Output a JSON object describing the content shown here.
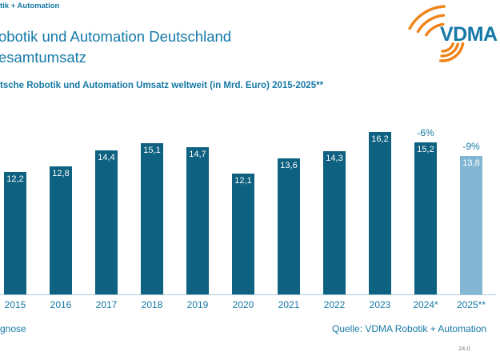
{
  "slide": {
    "brand_fragment": "tik + Automation",
    "title_lines": [
      "obotik und Automation Deutschland",
      "esamtumsatz"
    ],
    "subtitle": "tsche Robotik und Automation Umsatz weltweit (in Mrd. Euro) 2015-2025**",
    "logo_text": "VDMA",
    "footnote_fragment": "gnose",
    "source": "Quelle: VDMA Robotik + Automation",
    "date_fragment": "24.0"
  },
  "colors": {
    "teal_text": "#1679A5",
    "bar": "#0E6180",
    "bar_forecast": "#82B6D2",
    "bar_label": "#FFFFFF",
    "axis_line": "#A6CADD",
    "logo_orange": "#EF8318",
    "logo_blue": "#1579A8",
    "date_gray": "#7A7A7A"
  },
  "chart_data": {
    "type": "bar",
    "title_fragment": "tsche Robotik und Automation Umsatz weltweit (in Mrd. Euro) 2015-2025**",
    "unit": "Mrd. Euro",
    "categories": [
      "2015",
      "2016",
      "2017",
      "2018",
      "2019",
      "2020",
      "2021",
      "2022",
      "2023",
      "2024*",
      "2025**"
    ],
    "values": [
      12.2,
      12.8,
      14.4,
      15.1,
      14.7,
      12.1,
      13.6,
      14.3,
      16.2,
      15.2,
      13.8
    ],
    "value_labels": [
      "12,2",
      "12,8",
      "14,4",
      "15,1",
      "14,7",
      "12,1",
      "13,6",
      "14,3",
      "16,2",
      "15,2",
      "13,8"
    ],
    "annotations": [
      {
        "category": "2024*",
        "label": "-6%"
      },
      {
        "category": "2025**",
        "label": "-9%"
      }
    ],
    "forecast_categories": [
      "2025**"
    ],
    "y_axis_visible": false,
    "grid": false,
    "legend": null,
    "ylim": [
      0,
      18
    ]
  }
}
